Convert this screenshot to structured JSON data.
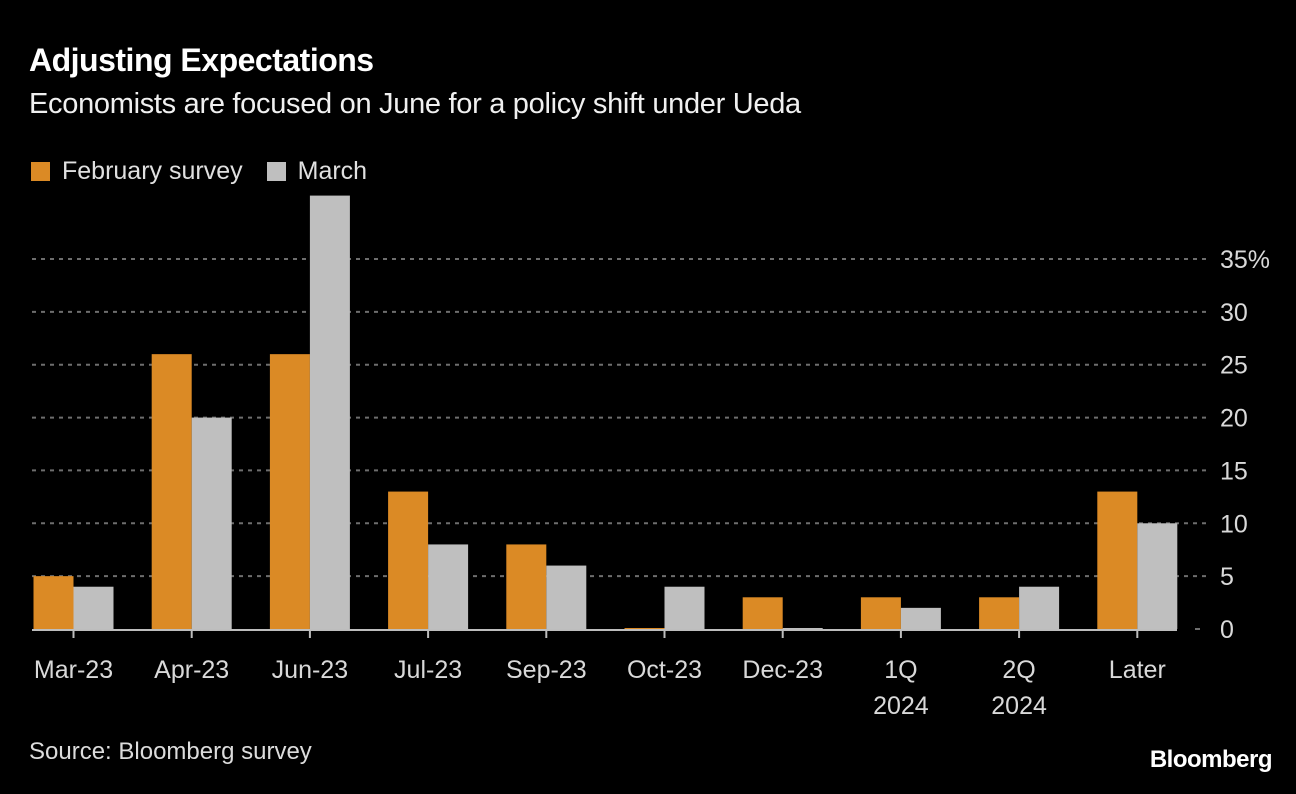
{
  "chart_data": {
    "type": "bar",
    "title": "Adjusting Expectations",
    "subtitle": "Economists are focused on June for a policy shift under Ueda",
    "categories": [
      [
        "Mar-23"
      ],
      [
        "Apr-23"
      ],
      [
        "Jun-23"
      ],
      [
        "Jul-23"
      ],
      [
        "Sep-23"
      ],
      [
        "Oct-23"
      ],
      [
        "Dec-23"
      ],
      [
        "1Q",
        "2024"
      ],
      [
        "2Q",
        "2024"
      ],
      [
        "Later"
      ]
    ],
    "series": [
      {
        "name": "February survey",
        "color": "#db8a25",
        "values": [
          5,
          26,
          26,
          13,
          8,
          0,
          3,
          3,
          3,
          13
        ]
      },
      {
        "name": "March",
        "color": "#bfbfbf",
        "values": [
          4,
          20,
          41,
          8,
          6,
          4,
          0,
          2,
          4,
          10
        ]
      }
    ],
    "xlabel": "",
    "ylabel": "",
    "ylim": [
      0,
      35
    ],
    "yticks": [
      0,
      5,
      10,
      15,
      20,
      25,
      30,
      35
    ],
    "ytick_labels": [
      "0",
      "5",
      "10",
      "15",
      "20",
      "25",
      "30",
      "35%"
    ],
    "y_axis_side": "right",
    "grid": true,
    "legend_position": "top-left",
    "source": "Source: Bloomberg survey",
    "brand": "Bloomberg"
  }
}
